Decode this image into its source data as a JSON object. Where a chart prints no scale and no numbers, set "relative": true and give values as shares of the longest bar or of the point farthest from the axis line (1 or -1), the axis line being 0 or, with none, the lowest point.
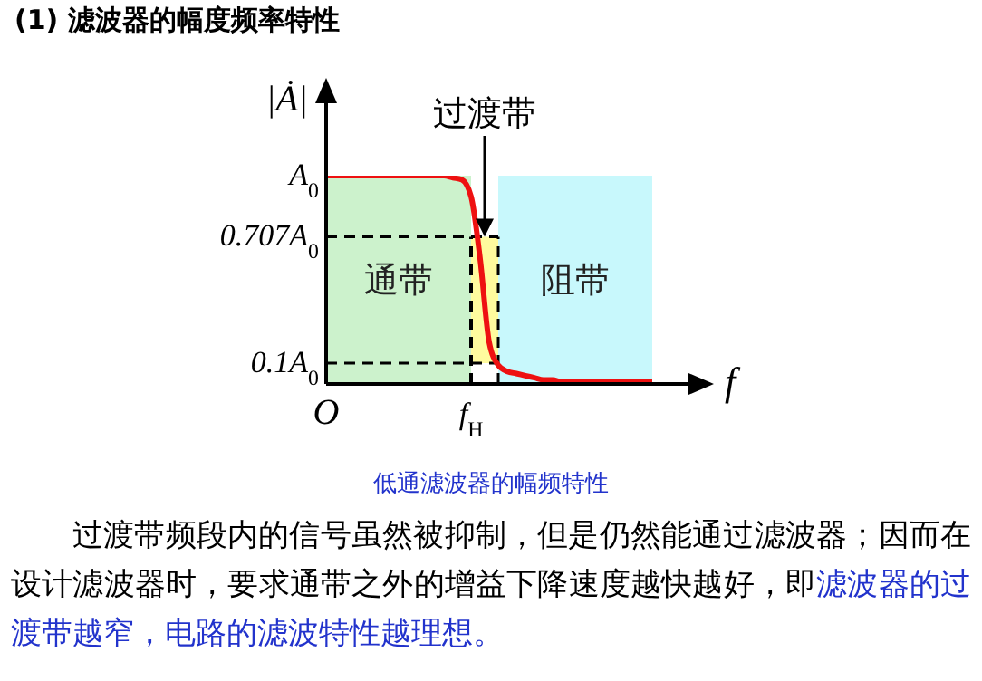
{
  "chart_data": {
    "type": "line",
    "title": "(1) 滤波器的幅度频率特性",
    "subtitle": "低通滤波器的幅频特性",
    "xlabel": "f",
    "ylabel": "|Ȧ|",
    "relative": true,
    "categories": [
      "O",
      null,
      null,
      null,
      null,
      null,
      null,
      null,
      null,
      null,
      null,
      null,
      null,
      null,
      null,
      null,
      "f$_{H}$",
      null,
      null,
      null,
      null,
      null,
      null,
      null,
      null,
      null,
      null,
      null,
      null,
      null,
      null,
      null,
      null,
      null,
      null,
      null,
      null,
      null,
      null,
      null,
      null
    ],
    "series": [
      {
        "color": "#ee1111",
        "values": [
          1,
          1,
          1,
          1,
          1,
          1,
          1,
          1,
          1,
          1,
          1,
          1,
          1,
          1,
          0.99,
          0.98,
          0.9,
          0.6,
          0.2,
          0.09,
          0.06,
          0.05,
          0.04,
          0.03,
          0.02,
          0.02,
          0.01,
          0.01,
          0.01,
          0.01,
          0.01,
          0.01,
          0.01,
          0.01,
          0.01,
          0.01,
          0.01,
          null,
          null,
          null,
          null
        ]
      }
    ],
    "marker": "none",
    "bands": [
      {
        "axis": "x",
        "from": "O",
        "to": "f$_{H}$",
        "label": "通带",
        "color": "#ccf2cc"
      }
    ],
    "ref_lines": [
      {
        "axis": "y",
        "value": 0.707,
        "label": "0.707A$_{0}$",
        "line_style": "dashed",
        "color": "#000000"
      },
      {
        "axis": "y",
        "value": 0.1,
        "label": "0.1A$_{0}$",
        "line_style": "dashed",
        "color": "#000000"
      },
      {
        "axis": "x",
        "value": "f$_{H}$",
        "line_style": "dashed",
        "color": "#000000"
      }
    ],
    "annotations": [
      "A$_{0}$",
      "阻带",
      {
        "text": "过渡带",
        "y": 0.707
      },
      "过渡带频段内的信号虽然被抑制，但是仍然能通过滤波器；因而在设计滤波器时，要求通带之外的增益下降速度越快越好，即",
      "滤波器的过渡带越窄，电路的滤波特性越理想。"
    ]
  }
}
